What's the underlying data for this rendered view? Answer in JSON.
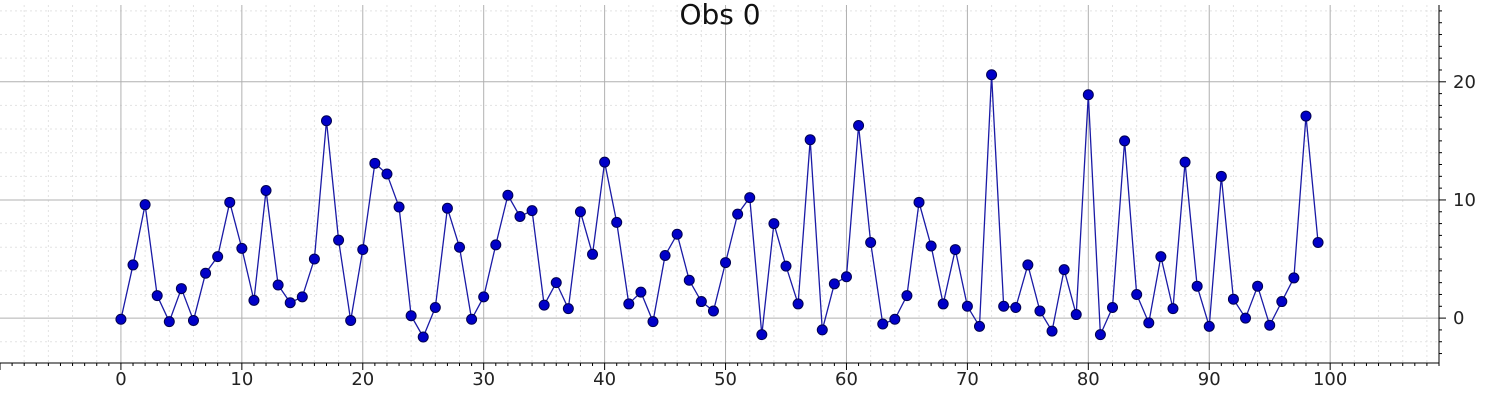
{
  "chart_data": {
    "type": "line",
    "title": "Obs 0",
    "xlim": [
      -10,
      109
    ],
    "ylim": [
      -3.8,
      26.5
    ],
    "x_ticks": [
      0,
      10,
      20,
      30,
      40,
      50,
      60,
      70,
      80,
      90,
      100
    ],
    "y_ticks": [
      0,
      10,
      20
    ],
    "grid": true,
    "minor_grid": true,
    "y_axis_side": "right",
    "line_color": "#1a1aa6",
    "marker_color": "#0000c8",
    "series": [
      {
        "x": [
          0,
          1,
          2,
          3,
          4,
          5,
          6,
          7,
          8,
          9,
          10,
          11,
          12,
          13,
          14,
          15,
          16,
          17,
          18,
          19,
          20,
          21,
          22,
          23,
          24,
          25,
          26,
          27,
          28,
          29,
          30,
          31,
          32,
          33,
          34,
          35,
          36,
          37,
          38,
          39,
          40,
          41,
          42,
          43,
          44,
          45,
          46,
          47,
          48,
          49,
          50,
          51,
          52,
          53,
          54,
          55,
          56,
          57,
          58,
          59,
          60,
          61,
          62,
          63,
          64,
          65,
          66,
          67,
          68,
          69,
          70,
          71,
          72,
          73,
          74,
          75,
          76,
          77,
          78,
          79,
          80,
          81,
          82,
          83,
          84,
          85,
          86,
          87,
          88,
          89,
          90,
          91,
          92,
          93,
          94,
          95,
          96,
          97,
          98,
          99
        ],
        "values": [
          -0.1,
          4.5,
          9.6,
          1.9,
          -0.3,
          2.5,
          -0.2,
          3.8,
          5.2,
          9.8,
          5.9,
          1.5,
          10.8,
          2.8,
          1.3,
          1.8,
          5.0,
          16.7,
          6.6,
          -0.2,
          5.8,
          13.1,
          12.2,
          9.4,
          0.2,
          -1.6,
          0.9,
          9.3,
          6.0,
          -0.1,
          1.8,
          6.2,
          10.4,
          8.6,
          9.1,
          1.1,
          3.0,
          0.8,
          9.0,
          5.4,
          13.2,
          8.1,
          1.2,
          2.2,
          -0.3,
          5.3,
          7.1,
          3.2,
          1.4,
          0.6,
          4.7,
          8.8,
          10.2,
          -1.4,
          8.0,
          4.4,
          1.2,
          15.1,
          -1.0,
          2.9,
          3.5,
          16.3,
          6.4,
          -0.5,
          -0.1,
          1.9,
          9.8,
          6.1,
          1.2,
          5.8,
          1.0,
          -0.7,
          20.6,
          1.0,
          0.9,
          4.5,
          0.6,
          -1.1,
          4.1,
          0.3,
          18.9,
          -1.4,
          0.9,
          15.0,
          2.0,
          -0.4,
          5.2,
          0.8,
          13.2,
          2.7,
          -0.7,
          12.0,
          1.6,
          0.0,
          2.7,
          -0.6,
          1.4,
          3.4,
          17.1,
          6.4
        ]
      }
    ]
  }
}
